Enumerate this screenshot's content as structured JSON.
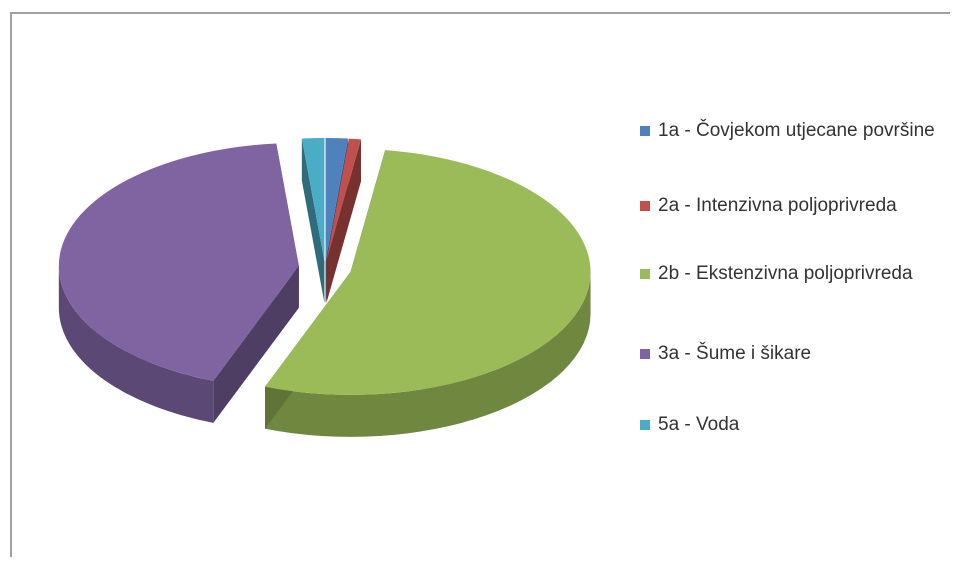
{
  "chart_data": {
    "type": "pie",
    "style": "3d-exploded",
    "title": "",
    "series": [
      {
        "label": "1a -  Čovjekom utjecane površine",
        "value": 1.5,
        "color": "#4f81bd"
      },
      {
        "label": "2a - Intenzivna poljoprivreda",
        "value": 0.8,
        "color": "#c0504d"
      },
      {
        "label": "2b - Ekstenzivna poljoprivreda",
        "value": 53.5,
        "color": "#9bbb59"
      },
      {
        "label": "3a - Šume i šikare",
        "value": 42.7,
        "color": "#8064a2"
      },
      {
        "label": "5a - Voda",
        "value": 1.5,
        "color": "#4bacc6"
      }
    ],
    "legend_position": "right"
  }
}
